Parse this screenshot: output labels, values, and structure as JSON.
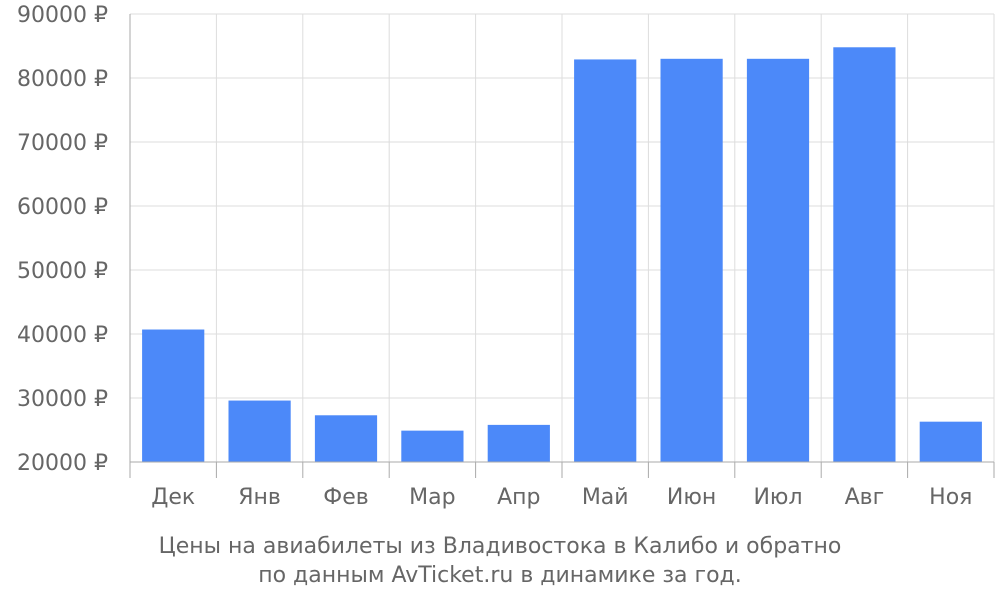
{
  "chart_data": {
    "type": "bar",
    "categories": [
      "Дек",
      "Янв",
      "Фев",
      "Мар",
      "Апр",
      "Май",
      "Июн",
      "Июл",
      "Авг",
      "Ноя"
    ],
    "series": [
      {
        "values": [
          40700,
          29600,
          27300,
          24900,
          25800,
          82900,
          83000,
          83000,
          84800,
          26300
        ]
      }
    ],
    "ylim": [
      20000,
      90000
    ],
    "yticks": [
      20000,
      30000,
      40000,
      50000,
      60000,
      70000,
      80000,
      90000
    ],
    "ytick_suffix": " ₽",
    "grid": true,
    "title": "Цены на авиабилеты из Владивостока в Калибо и обратно",
    "subtitle": "по данным AvTicket.ru в динамике за год.",
    "xlabel": "",
    "ylabel": ""
  },
  "colors": {
    "bar": "#4c89f9",
    "grid": "#dddddd",
    "axis": "#aaaaaa",
    "text": "#666666"
  }
}
